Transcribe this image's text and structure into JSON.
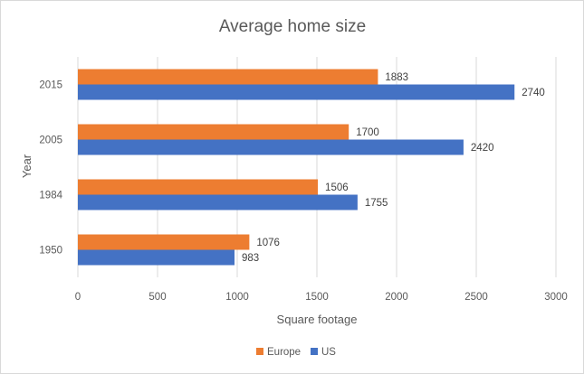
{
  "chart_data": {
    "type": "bar",
    "orientation": "horizontal",
    "title": "Average home size",
    "xlabel": "Square footage",
    "ylabel": "Year",
    "categories": [
      "2015",
      "2005",
      "1984",
      "1950"
    ],
    "series": [
      {
        "name": "Europe",
        "color": "#ed7d31",
        "values": [
          1883,
          1700,
          1506,
          1076
        ]
      },
      {
        "name": "US",
        "color": "#4472c4",
        "values": [
          2740,
          2420,
          1755,
          983
        ]
      }
    ],
    "xlim": [
      0,
      3000
    ],
    "xticks": [
      "0",
      "500",
      "1000",
      "1500",
      "2000",
      "2500",
      "3000"
    ],
    "grid": true,
    "legend_position": "bottom"
  }
}
